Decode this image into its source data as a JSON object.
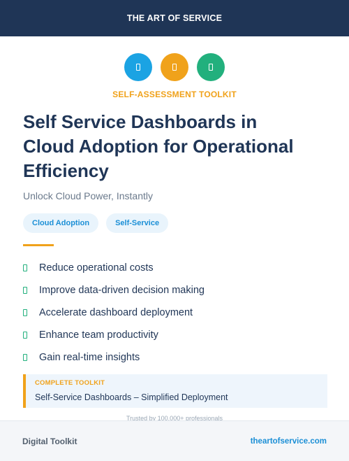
{
  "header": {
    "brand": "THE ART OF SERVICE",
    "color": "#1f3556"
  },
  "icons": [
    {
      "name": "document-icon",
      "color": "#1ba3e3"
    },
    {
      "name": "document-icon",
      "color": "#f0a21b"
    },
    {
      "name": "document-icon",
      "color": "#22b07d"
    }
  ],
  "kicker": "SELF-ASSESSMENT TOOLKIT",
  "title_lines": [
    "Self Service Dashboards in",
    "Cloud Adoption for Operational",
    "Efficiency"
  ],
  "subtitle": "Unlock Cloud Power, Instantly",
  "tags": [
    "Cloud Adoption",
    "Self-Service"
  ],
  "benefits": [
    "Reduce operational costs",
    "Improve data-driven decision making",
    "Accelerate dashboard deployment",
    "Enhance team productivity",
    "Gain real-time insights"
  ],
  "callout": {
    "label": "COMPLETE TOOLKIT",
    "text": "Self-Service Dashboards – Simplified Deployment"
  },
  "trusted": "Trusted by 100,000+ professionals",
  "footer": {
    "left": "Digital Toolkit",
    "right": "theartofservice.com"
  },
  "colors": {
    "accent_orange": "#f0a21b",
    "accent_blue": "#1ba3e3",
    "accent_green": "#22b07d",
    "navy": "#1f3556"
  }
}
